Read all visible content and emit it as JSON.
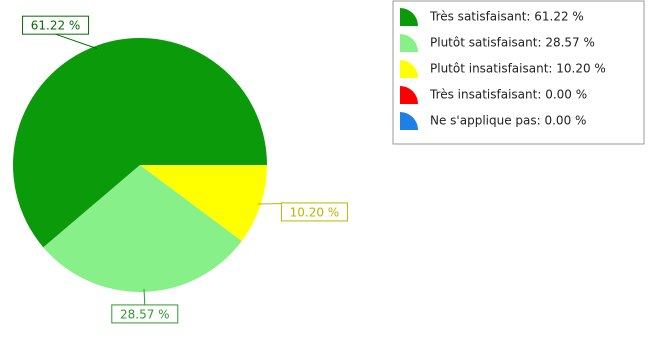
{
  "chart_data": {
    "type": "pie",
    "categories": [
      "Très satisfaisant: 61.22 %",
      "Plutôt satisfaisant: 28.57 %",
      "Plutôt insatisfaisant: 10.20 %",
      "Très insatisfaisant: 0.00 %",
      "Ne s'applique pas: 0.00 %"
    ],
    "values": [
      61.22,
      28.57,
      10.2,
      0.0,
      0.0
    ],
    "value_labels": [
      "61.22 %",
      "28.57 %",
      "10.20 %",
      null,
      null
    ],
    "colors": [
      "#0a9a0a",
      "#88f088",
      "#ffff00",
      "#ff0000",
      "#1e7fe6"
    ],
    "label_colors": [
      "#066b06",
      "#2f9a2f",
      "#b8b800",
      "#a00000",
      "#0a4fa0"
    ],
    "legend": "top-right"
  }
}
